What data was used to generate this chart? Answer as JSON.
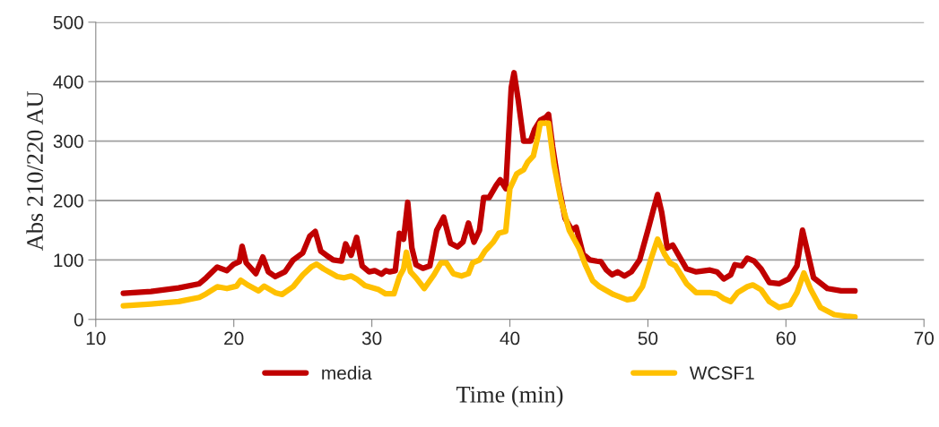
{
  "chart_data": {
    "type": "line",
    "xlabel": "Time (min)",
    "ylabel": "Abs 210/220 AU",
    "xlim": [
      10,
      70
    ],
    "xticks": [
      10,
      20,
      30,
      40,
      50,
      60,
      70
    ],
    "ylim": [
      0,
      500
    ],
    "yticks": [
      0,
      100,
      200,
      300,
      400,
      500
    ],
    "grid": "y",
    "legend": "bottom",
    "marker": "none",
    "line_style": "solid",
    "series": [
      {
        "name": "media",
        "color": "#c00000",
        "x": [
          12,
          14,
          16,
          17.5,
          18,
          18.8,
          19.5,
          20,
          20.4,
          20.6,
          20.9,
          21.6,
          22.1,
          22.5,
          23,
          23.7,
          24.3,
          25,
          25.5,
          25.9,
          26.3,
          26.7,
          27.2,
          27.8,
          28.1,
          28.5,
          28.9,
          29.3,
          29.8,
          30.2,
          30.7,
          31,
          31.3,
          31.7,
          32,
          32.3,
          32.6,
          32.9,
          33.2,
          33.7,
          34.2,
          34.7,
          35.2,
          35.7,
          36.2,
          36.6,
          37,
          37.4,
          37.8,
          38.1,
          38.5,
          39,
          39.3,
          39.7,
          40.1,
          40.3,
          40.6,
          41,
          41.5,
          41.8,
          42.2,
          42.6,
          42.8,
          43.1,
          43.5,
          44,
          44.5,
          44.8,
          45.3,
          45.8,
          46.3,
          46.6,
          47,
          47.4,
          47.8,
          48.3,
          48.8,
          49.4,
          50,
          50.4,
          50.7,
          51,
          51.4,
          51.8,
          52.3,
          52.8,
          53.5,
          54.5,
          55,
          55.5,
          56,
          56.3,
          56.8,
          57.2,
          57.7,
          58.2,
          58.8,
          59.5,
          60.2,
          60.8,
          61.2,
          61.6,
          62,
          63,
          64,
          65
        ],
        "values": [
          44,
          47,
          53,
          60,
          70,
          88,
          82,
          93,
          97,
          123,
          95,
          77,
          105,
          80,
          72,
          80,
          100,
          112,
          140,
          148,
          115,
          108,
          100,
          98,
          127,
          108,
          138,
          90,
          80,
          82,
          76,
          82,
          80,
          82,
          145,
          135,
          197,
          120,
          92,
          86,
          90,
          150,
          172,
          128,
          122,
          130,
          162,
          130,
          150,
          205,
          205,
          225,
          235,
          220,
          390,
          415,
          370,
          300,
          300,
          320,
          335,
          340,
          345,
          290,
          230,
          170,
          150,
          155,
          110,
          100,
          98,
          97,
          83,
          75,
          80,
          73,
          80,
          100,
          150,
          185,
          210,
          180,
          120,
          125,
          105,
          85,
          80,
          83,
          80,
          68,
          75,
          92,
          90,
          103,
          98,
          85,
          62,
          60,
          68,
          90,
          150,
          110,
          70,
          52,
          48,
          48
        ]
      },
      {
        "name": "WCSF1",
        "color": "#ffc000",
        "x": [
          12,
          14,
          16,
          17.5,
          18,
          18.8,
          19.5,
          20.2,
          20.5,
          21,
          21.8,
          22.2,
          23,
          23.5,
          24.3,
          25,
          25.6,
          26,
          26.5,
          27.5,
          28,
          28.5,
          28.9,
          29.5,
          30.5,
          31,
          31.6,
          32,
          32.3,
          32.5,
          32.8,
          33.2,
          33.8,
          34.5,
          35,
          35.4,
          35.9,
          36.5,
          37,
          37.3,
          37.8,
          38.2,
          38.8,
          39.2,
          39.7,
          40,
          40.5,
          41,
          41.3,
          41.7,
          42,
          42.2,
          42.8,
          43.2,
          43.7,
          44.3,
          45,
          45.5,
          46,
          46.5,
          47.5,
          48.5,
          49,
          49.6,
          50.2,
          50.7,
          51.2,
          51.6,
          52,
          52.8,
          53.5,
          54.5,
          55,
          55.5,
          56,
          56.5,
          57.2,
          57.6,
          58.2,
          58.8,
          59.5,
          60.3,
          60.8,
          61.3,
          61.8,
          62.5,
          63.5,
          64.5,
          65
        ],
        "values": [
          23,
          26,
          30,
          37,
          43,
          55,
          52,
          56,
          66,
          58,
          48,
          56,
          45,
          42,
          55,
          75,
          88,
          93,
          85,
          72,
          70,
          73,
          68,
          57,
          50,
          43,
          43,
          72,
          85,
          113,
          80,
          70,
          52,
          75,
          95,
          95,
          77,
          73,
          77,
          95,
          100,
          115,
          130,
          145,
          148,
          220,
          245,
          252,
          265,
          275,
          305,
          330,
          330,
          260,
          200,
          150,
          120,
          90,
          65,
          55,
          42,
          33,
          35,
          55,
          100,
          135,
          110,
          95,
          90,
          60,
          45,
          45,
          43,
          35,
          30,
          45,
          55,
          58,
          50,
          30,
          20,
          25,
          45,
          78,
          50,
          20,
          8,
          5,
          4
        ]
      }
    ]
  }
}
